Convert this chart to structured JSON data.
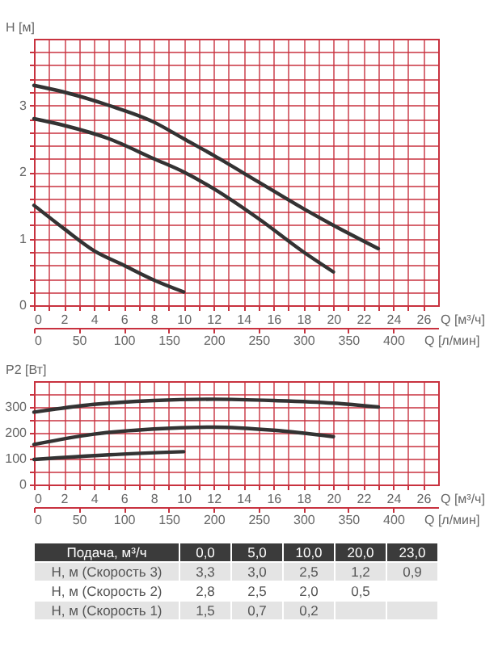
{
  "chart_data": [
    {
      "type": "line",
      "ylabel": "H [м]",
      "xlabel": "Q [м³/ч]",
      "x2label": "Q [л/мин]",
      "xlim": [
        0,
        27
      ],
      "ylim": [
        0,
        4
      ],
      "xticks": [
        0,
        {
          "value": 1,
          "label": null
        },
        2,
        {
          "value": 3,
          "label": null
        },
        4,
        {
          "value": 5,
          "label": null
        },
        6,
        {
          "value": 7,
          "label": null
        },
        8,
        {
          "value": 9,
          "label": null
        },
        10,
        {
          "value": 11,
          "label": null
        },
        12,
        {
          "value": 13,
          "label": null
        },
        14,
        {
          "value": 15,
          "label": null
        },
        16,
        {
          "value": 17,
          "label": null
        },
        18,
        {
          "value": 19,
          "label": null
        },
        20,
        {
          "value": 21,
          "label": null
        },
        22,
        {
          "value": 23,
          "label": null
        },
        24,
        {
          "value": 25,
          "label": null
        },
        26
      ],
      "yticks": [
        0,
        {
          "value": 0.2,
          "label": null
        },
        {
          "value": 0.4,
          "label": null
        },
        {
          "value": 0.6,
          "label": null
        },
        {
          "value": 0.8,
          "label": null
        },
        1,
        {
          "value": 1.2,
          "label": null
        },
        {
          "value": 1.4,
          "label": null
        },
        {
          "value": 1.6,
          "label": null
        },
        {
          "value": 1.8,
          "label": null
        },
        2,
        {
          "value": 2.2,
          "label": null
        },
        {
          "value": 2.4,
          "label": null
        },
        {
          "value": 2.6,
          "label": null
        },
        {
          "value": 2.8,
          "label": null
        },
        3,
        {
          "value": 3.2,
          "label": null
        },
        {
          "value": 3.4,
          "label": null
        },
        {
          "value": 3.6,
          "label": null
        },
        {
          "value": 3.8,
          "label": null
        }
      ],
      "x2lim": [
        0,
        450
      ],
      "x2ticks": [
        0,
        50,
        100,
        150,
        200,
        250,
        300,
        350,
        400
      ],
      "grid": true,
      "series": [
        {
          "color": "#333333",
          "x": [
            0,
            2,
            5,
            8,
            10,
            12,
            15,
            18,
            20,
            23
          ],
          "values": [
            3.3,
            3.2,
            3.0,
            2.75,
            2.5,
            2.25,
            1.85,
            1.45,
            1.2,
            0.85
          ]
        },
        {
          "color": "#333333",
          "x": [
            0,
            2,
            5,
            8,
            10,
            12,
            15,
            18,
            20
          ],
          "values": [
            2.8,
            2.7,
            2.5,
            2.2,
            2.0,
            1.75,
            1.3,
            0.8,
            0.5
          ]
        },
        {
          "color": "#333333",
          "x": [
            0,
            2,
            4,
            6,
            8,
            10
          ],
          "values": [
            1.5,
            1.15,
            0.82,
            0.6,
            0.38,
            0.2
          ]
        }
      ]
    },
    {
      "type": "line",
      "ylabel": "P2 [Вт]",
      "xlabel": "Q [м³/ч]",
      "x2label": "Q [л/мин]",
      "xlim": [
        0,
        27
      ],
      "ylim": [
        0,
        400
      ],
      "xticks": [
        0,
        {
          "value": 1,
          "label": null
        },
        2,
        {
          "value": 3,
          "label": null
        },
        4,
        {
          "value": 5,
          "label": null
        },
        6,
        {
          "value": 7,
          "label": null
        },
        8,
        {
          "value": 9,
          "label": null
        },
        10,
        {
          "value": 11,
          "label": null
        },
        12,
        {
          "value": 13,
          "label": null
        },
        14,
        {
          "value": 15,
          "label": null
        },
        16,
        {
          "value": 17,
          "label": null
        },
        18,
        {
          "value": 19,
          "label": null
        },
        20,
        {
          "value": 21,
          "label": null
        },
        22,
        {
          "value": 23,
          "label": null
        },
        24,
        {
          "value": 25,
          "label": null
        },
        26
      ],
      "yticks": [
        0,
        {
          "value": 50,
          "label": null
        },
        100,
        {
          "value": 150,
          "label": null
        },
        200,
        {
          "value": 250,
          "label": null
        },
        300,
        {
          "value": 350,
          "label": null
        }
      ],
      "x2lim": [
        0,
        450
      ],
      "x2ticks": [
        0,
        50,
        100,
        150,
        200,
        250,
        300,
        350,
        400
      ],
      "grid": true,
      "series": [
        {
          "color": "#333333",
          "x": [
            0,
            4,
            8,
            12,
            16,
            20,
            23
          ],
          "values": [
            280,
            310,
            325,
            330,
            325,
            315,
            300
          ]
        },
        {
          "color": "#333333",
          "x": [
            0,
            4,
            8,
            12,
            16,
            20
          ],
          "values": [
            155,
            195,
            215,
            222,
            210,
            185
          ]
        },
        {
          "color": "#333333",
          "x": [
            0,
            5,
            10
          ],
          "values": [
            97,
            115,
            127
          ]
        }
      ]
    },
    {
      "type": "other",
      "xlabel": "Подача, м³/ч",
      "categories": [
        "0,0",
        "5,0",
        "10,0",
        "20,0",
        "23,0"
      ],
      "series": [
        {
          "name": "H, м (Скорость 3)",
          "values": [
            3.3,
            3.0,
            2.5,
            1.2,
            0.9
          ],
          "value_labels": [
            "3,3",
            "3,0",
            "2,5",
            "1,2",
            "0,9"
          ]
        },
        {
          "name": "H, м (Скорость 2)",
          "values": [
            2.8,
            2.5,
            2.0,
            0.5,
            null
          ],
          "value_labels": [
            "2,8",
            "2,5",
            "2,0",
            "0,5",
            null
          ]
        },
        {
          "name": "H, м (Скорость 1)",
          "values": [
            1.5,
            0.7,
            0.2,
            null,
            null
          ],
          "value_labels": [
            "1,5",
            "0,7",
            "0,2",
            null,
            null
          ]
        }
      ]
    }
  ]
}
